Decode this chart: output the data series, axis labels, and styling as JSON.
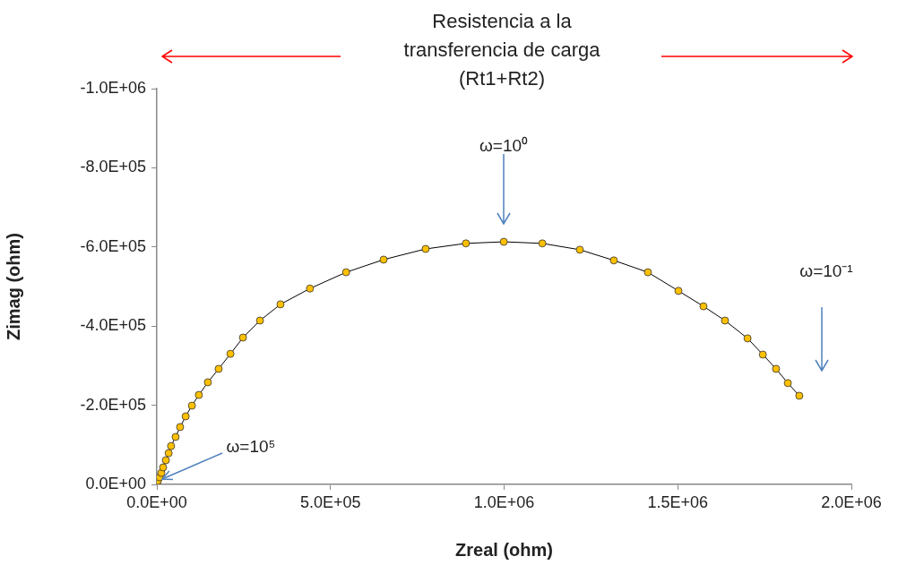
{
  "chart_data": {
    "type": "line",
    "title": "Resistencia a la transferencia de carga (Rt1+Rt2)",
    "xlabel": "Zreal (ohm)",
    "ylabel": "Zimag (ohm)",
    "series": [
      {
        "color": "#ffc000",
        "x": [
          0,
          3000,
          8000,
          13000,
          18000,
          26000,
          34000,
          41000,
          54000,
          67000,
          83000,
          101000,
          121000,
          147000,
          178000,
          212000,
          248000,
          297000,
          356000,
          441000,
          545000,
          653000,
          774000,
          890000,
          999000,
          1110000,
          1218000,
          1316000,
          1414000,
          1502000,
          1574000,
          1636000,
          1701000,
          1745000,
          1783000,
          1817000,
          1850000
        ],
        "values": [
          0,
          -9000,
          -18000,
          -29000,
          -43000,
          -61000,
          -79000,
          -97000,
          -120000,
          -145000,
          -172000,
          -199000,
          -226000,
          -258000,
          -292000,
          -330000,
          -371000,
          -414000,
          -455000,
          -495000,
          -536000,
          -568000,
          -595000,
          -609000,
          -613000,
          -609000,
          -593000,
          -566000,
          -536000,
          -489000,
          -450000,
          -414000,
          -369000,
          -328000,
          -292000,
          -256000,
          -224000
        ]
      }
    ],
    "xlim": [
      0,
      2000000
    ],
    "xticks": [
      {
        "value": 0,
        "label": "0.0E+00"
      },
      {
        "value": 500000,
        "label": "5.0E+05"
      },
      {
        "value": 1000000,
        "label": "1.0E+06"
      },
      {
        "value": 1500000,
        "label": "1.5E+06"
      },
      {
        "value": 2000000,
        "label": "2.0E+06"
      }
    ],
    "ylim": [
      0,
      -1000000
    ],
    "yticks": [
      {
        "value": 0,
        "label": "0.0E+00"
      },
      {
        "value": -200000,
        "label": "-2.0E+05"
      },
      {
        "value": -400000,
        "label": "-4.0E+05"
      },
      {
        "value": -600000,
        "label": "-6.0E+05"
      },
      {
        "value": -800000,
        "label": "-8.0E+05"
      },
      {
        "value": -1000000,
        "label": "-1.0E+06"
      }
    ],
    "annotations": [
      "ω=10⁰",
      "ω=10⁻¹",
      {
        "text": "ω=10⁵",
        "x": 0,
        "y": 0
      }
    ],
    "grid": false,
    "legend": false,
    "marker": "circle",
    "line_style": "solid"
  }
}
